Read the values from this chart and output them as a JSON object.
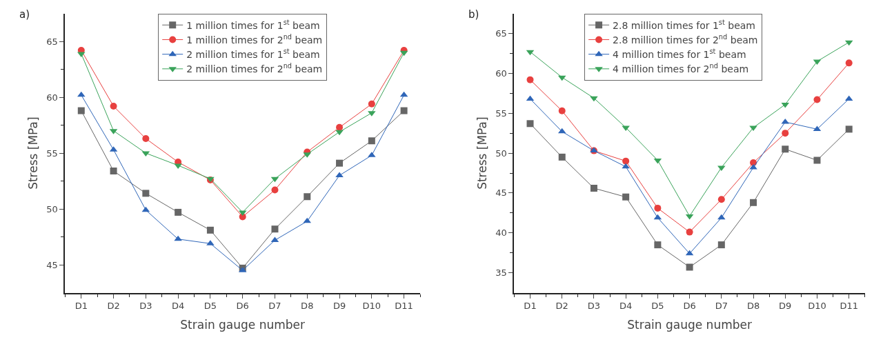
{
  "chart_data": [
    {
      "type": "line",
      "title": "a)",
      "xlabel": "Strain gauge number",
      "ylabel": "Stress [MPa]",
      "categories": [
        "D1",
        "D2",
        "D3",
        "D4",
        "D5",
        "D6",
        "D7",
        "D8",
        "D9",
        "D10",
        "D11"
      ],
      "ylim": [
        42.5,
        67.5
      ],
      "yticks": [
        45,
        50,
        55,
        60,
        65
      ],
      "legend": "top",
      "series": [
        {
          "name": "1 million times for 1$^{st}$ beam",
          "color": "#666666",
          "marker": "square",
          "values": [
            58.8,
            53.4,
            51.4,
            49.7,
            48.1,
            44.7,
            48.2,
            51.1,
            54.1,
            56.1,
            58.8
          ]
        },
        {
          "name": "1 million times for 2$^{nd}$ beam",
          "color": "#e8403f",
          "marker": "circle",
          "values": [
            64.2,
            59.2,
            56.3,
            54.2,
            52.6,
            49.3,
            51.7,
            55.1,
            57.3,
            59.4,
            64.2
          ]
        },
        {
          "name": "2 million times for 1$^{st}$ beam",
          "color": "#2f66b8",
          "marker": "triangle",
          "values": [
            60.2,
            55.3,
            49.9,
            47.3,
            46.9,
            44.5,
            47.2,
            48.9,
            53.0,
            54.8,
            60.2
          ]
        },
        {
          "name": "2 million times for 2$^{nd}$ beam",
          "color": "#3aa35a",
          "marker": "triangle-down",
          "values": [
            63.9,
            57.0,
            55.0,
            53.9,
            52.7,
            49.7,
            52.7,
            54.9,
            56.9,
            58.6,
            64.0
          ]
        }
      ]
    },
    {
      "type": "line",
      "title": "b)",
      "xlabel": "Strain gauge number",
      "ylabel": "Stress [MPa]",
      "categories": [
        "D1",
        "D2",
        "D3",
        "D4",
        "D5",
        "D6",
        "D7",
        "D8",
        "D9",
        "D10",
        "D11"
      ],
      "ylim": [
        32.5,
        67.5
      ],
      "yticks": [
        35,
        40,
        45,
        50,
        55,
        60,
        65
      ],
      "legend": "top left",
      "series": [
        {
          "name": "2.8 million times for 1$^{st}$ beam",
          "color": "#666666",
          "marker": "square",
          "values": [
            53.7,
            49.5,
            45.6,
            44.5,
            38.5,
            35.7,
            38.5,
            43.8,
            50.5,
            49.1,
            53.0
          ]
        },
        {
          "name": "2.8 million times for 2$^{nd}$ beam",
          "color": "#e8403f",
          "marker": "circle",
          "values": [
            59.2,
            55.3,
            50.3,
            49.0,
            43.1,
            40.1,
            44.2,
            48.8,
            52.5,
            56.7,
            61.3
          ]
        },
        {
          "name": "4 million times for 1$^{st}$ beam",
          "color": "#2f66b8",
          "marker": "triangle",
          "values": [
            56.8,
            52.7,
            50.3,
            48.3,
            41.9,
            37.4,
            41.9,
            48.2,
            53.9,
            53.0,
            56.8
          ]
        },
        {
          "name": "4 million times for 2$^{nd}$ beam",
          "color": "#3aa35a",
          "marker": "triangle-down",
          "values": [
            62.7,
            59.5,
            56.9,
            53.2,
            49.1,
            42.1,
            48.2,
            53.2,
            56.1,
            61.5,
            63.9
          ]
        }
      ]
    }
  ]
}
